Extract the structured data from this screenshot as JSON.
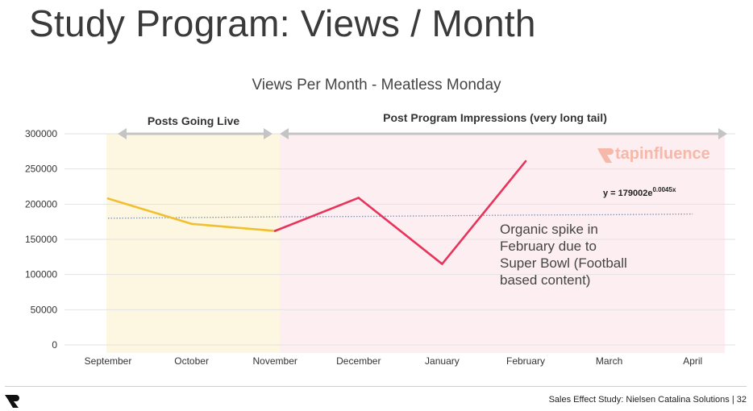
{
  "slide": {
    "title": "Study Program: Views / Month",
    "footer": "Sales Effect Study: Nielsen Catalina Solutions | 32"
  },
  "chart_data": {
    "type": "line",
    "title": "Views Per Month - Meatless Monday",
    "categories": [
      "September",
      "October",
      "November",
      "December",
      "January",
      "February",
      "March",
      "April"
    ],
    "ylim": [
      0,
      300000
    ],
    "yticks": [
      0,
      50000,
      100000,
      150000,
      200000,
      250000,
      300000
    ],
    "series": [
      {
        "name": "",
        "color": "#f0c030",
        "values": [
          208000,
          172000,
          162000,
          null,
          null,
          null,
          null,
          null
        ]
      },
      {
        "name": "",
        "color": "#e8335a",
        "values": [
          null,
          null,
          162000,
          209000,
          115000,
          261000,
          null,
          null
        ]
      }
    ],
    "trendline": {
      "label": "y = 179002e",
      "exponent": "0.0045x",
      "values": [
        180000,
        181000,
        182000,
        182500,
        183500,
        184500,
        185000,
        186000
      ],
      "color": "#7f93b5",
      "style": "dotted"
    },
    "regions": [
      {
        "label": "Posts Going Live",
        "from": "September",
        "to": "November",
        "color": "#fdf6e0"
      },
      {
        "label": "Post Program Impressions (very long tail)",
        "from": "November",
        "to": "April",
        "color": "#fdeef2"
      }
    ],
    "annotation": {
      "lines": [
        "Organic spike in",
        "February due to",
        "Super Bowl (Football",
        "based content)"
      ]
    },
    "watermark": {
      "text": "tapinfluence",
      "color": "#f6b8a8"
    },
    "grid": true
  }
}
